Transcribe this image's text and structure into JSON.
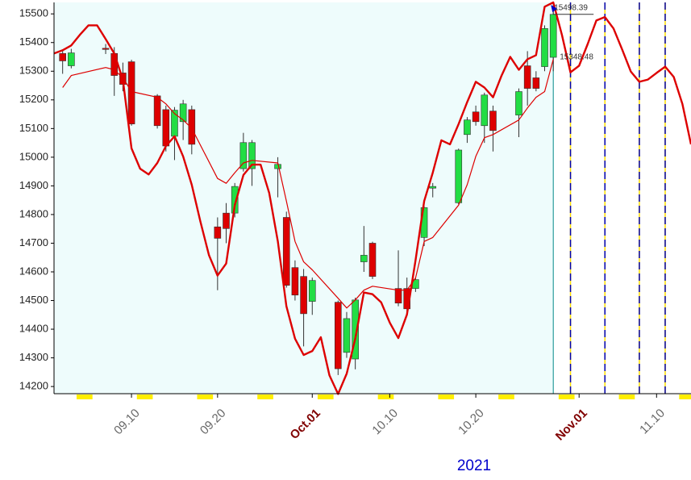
{
  "chart_data": {
    "type": "candlestick",
    "xlabel": "2021",
    "xlim": [
      "2021-09-01",
      "2021-11-14"
    ],
    "ylim": [
      14175,
      15540
    ],
    "yticks": [
      14200,
      14300,
      14400,
      14500,
      14600,
      14700,
      14800,
      14900,
      15000,
      15100,
      15200,
      15300,
      15400,
      15500
    ],
    "xticks": [
      {
        "value": "2021-09-10",
        "label": "09.10"
      },
      {
        "value": "2021-09-20",
        "label": "09.20"
      },
      {
        "value": "2021-10-01",
        "label": "Oct.01"
      },
      {
        "value": "2021-10-10",
        "label": "10.10"
      },
      {
        "value": "2021-10-20",
        "label": "10.20"
      },
      {
        "value": "2021-11-01",
        "label": "Nov.01"
      },
      {
        "value": "2021-11-10",
        "label": "11.10"
      }
    ],
    "xtick_colors": [
      "#666666",
      "#666666",
      "#800000",
      "#666666",
      "#666666",
      "#800000",
      "#666666"
    ],
    "up_color": "#22dd44",
    "down_color": "#dd0000",
    "candles": {
      "x": [
        "2021-09-02",
        "2021-09-03",
        "2021-09-07",
        "2021-09-08",
        "2021-09-09",
        "2021-09-10",
        "2021-09-13",
        "2021-09-14",
        "2021-09-15",
        "2021-09-16",
        "2021-09-17",
        "2021-09-20",
        "2021-09-21",
        "2021-09-22",
        "2021-09-23",
        "2021-09-24",
        "2021-09-27",
        "2021-09-28",
        "2021-09-29",
        "2021-09-30",
        "2021-10-01",
        "2021-10-04",
        "2021-10-05",
        "2021-10-06",
        "2021-10-07",
        "2021-10-08",
        "2021-10-11",
        "2021-10-12",
        "2021-10-13",
        "2021-10-14",
        "2021-10-15",
        "2021-10-18",
        "2021-10-19",
        "2021-10-20",
        "2021-10-21",
        "2021-10-22",
        "2021-10-25",
        "2021-10-26",
        "2021-10-27",
        "2021-10-28",
        "2021-10-29"
      ],
      "open": [
        15362,
        15319,
        15380,
        15362,
        15294,
        15333,
        15214,
        15166,
        15073,
        15124,
        15166,
        14757,
        14805,
        14805,
        14960,
        14960,
        14960,
        14790,
        14615,
        14584,
        14497,
        14494,
        14319,
        14296,
        14635,
        14700,
        14542,
        14542,
        14542,
        14720,
        14892,
        14841,
        15079,
        15158,
        15110,
        15161,
        15147,
        15319,
        15277,
        15316,
        15348.48
      ],
      "high": [
        15376,
        15378,
        15395,
        15384,
        15330,
        15340,
        15220,
        15180,
        15175,
        15200,
        15180,
        14790,
        14840,
        14910,
        15085,
        15060,
        15000,
        14810,
        14640,
        14610,
        14580,
        14500,
        14460,
        14510,
        14760,
        14705,
        14675,
        14580,
        14580,
        14830,
        14910,
        15030,
        15140,
        15180,
        15225,
        15180,
        15240,
        15370,
        15300,
        15460,
        15530
      ],
      "low": [
        15291,
        15310,
        15360,
        15214,
        15230,
        15110,
        15100,
        15020,
        14990,
        15060,
        15010,
        14536,
        14700,
        14790,
        14950,
        14900,
        14860,
        14545,
        14500,
        14340,
        14450,
        14240,
        14300,
        14260,
        14600,
        14575,
        14480,
        14460,
        14530,
        14690,
        14860,
        14835,
        15050,
        15110,
        15050,
        15020,
        15070,
        15180,
        15230,
        15300,
        15300
      ],
      "close": [
        15336,
        15364,
        15376,
        15285,
        15254,
        15116,
        15110,
        15039,
        15164,
        15186,
        15045,
        14717,
        14751,
        14898,
        15051,
        15051,
        14975,
        14553,
        14519,
        14454,
        14570,
        14262,
        14437,
        14502,
        14658,
        14584,
        14491,
        14471,
        14573,
        14824,
        14898,
        15025,
        15130,
        15124,
        15217,
        15093,
        15229,
        15240,
        15240,
        15449,
        15498.39
      ]
    },
    "lines": [
      {
        "color": "#dd0000",
        "width": 1.2,
        "x": [
          "2021-09-02",
          "2021-09-03",
          "2021-09-07",
          "2021-09-08",
          "2021-09-09",
          "2021-09-10",
          "2021-09-13",
          "2021-09-14",
          "2021-09-15",
          "2021-09-16",
          "2021-09-17",
          "2021-09-20",
          "2021-09-21",
          "2021-09-22",
          "2021-09-23",
          "2021-09-24",
          "2021-09-27",
          "2021-09-28",
          "2021-09-29",
          "2021-09-30",
          "2021-10-01",
          "2021-10-04",
          "2021-10-05",
          "2021-10-06",
          "2021-10-07",
          "2021-10-08",
          "2021-10-11",
          "2021-10-12",
          "2021-10-13",
          "2021-10-14",
          "2021-10-15",
          "2021-10-18",
          "2021-10-19",
          "2021-10-20",
          "2021-10-21",
          "2021-10-22",
          "2021-10-25",
          "2021-10-26",
          "2021-10-27",
          "2021-10-28",
          "2021-10-29"
        ],
        "values": [
          15243,
          15285,
          15313,
          15305,
          15277,
          15229,
          15209,
          15186,
          15152,
          15130,
          15101,
          14926,
          14909,
          14946,
          14980,
          14989,
          14980,
          14847,
          14706,
          14635,
          14607,
          14508,
          14474,
          14502,
          14536,
          14550,
          14536,
          14536,
          14579,
          14706,
          14720,
          14833,
          14904,
          15003,
          15068,
          15079,
          15130,
          15172,
          15209,
          15229,
          15342
        ]
      },
      {
        "color": "#dd0000",
        "width": 2.4,
        "x": [
          "2021-09-01",
          "2021-09-02",
          "2021-09-03",
          "2021-09-04",
          "2021-09-05",
          "2021-09-06",
          "2021-09-07",
          "2021-09-08",
          "2021-09-09",
          "2021-09-10",
          "2021-09-11",
          "2021-09-12",
          "2021-09-13",
          "2021-09-14",
          "2021-09-15",
          "2021-09-16",
          "2021-09-17",
          "2021-09-18",
          "2021-09-19",
          "2021-09-20",
          "2021-09-21",
          "2021-09-22",
          "2021-09-23",
          "2021-09-24",
          "2021-09-25",
          "2021-09-26",
          "2021-09-27",
          "2021-09-28",
          "2021-09-29",
          "2021-09-30",
          "2021-10-01",
          "2021-10-02",
          "2021-10-03",
          "2021-10-04",
          "2021-10-05",
          "2021-10-06",
          "2021-10-07",
          "2021-10-08",
          "2021-10-09",
          "2021-10-10",
          "2021-10-11",
          "2021-10-12",
          "2021-10-13",
          "2021-10-14",
          "2021-10-15",
          "2021-10-16",
          "2021-10-17",
          "2021-10-18",
          "2021-10-19",
          "2021-10-20",
          "2021-10-21",
          "2021-10-22",
          "2021-10-23",
          "2021-10-24",
          "2021-10-25",
          "2021-10-26",
          "2021-10-27",
          "2021-10-28",
          "2021-10-29",
          "2021-10-30",
          "2021-10-31",
          "2021-11-01",
          "2021-11-02",
          "2021-11-03",
          "2021-11-04",
          "2021-11-05",
          "2021-11-06",
          "2021-11-07",
          "2021-11-08",
          "2021-11-09",
          "2021-11-10",
          "2021-11-11",
          "2021-11-12",
          "2021-11-13",
          "2021-11-14"
        ],
        "values": [
          15362,
          15373,
          15390,
          15427,
          15460,
          15460,
          15412,
          15362,
          15271,
          15031,
          14960,
          14940,
          14980,
          15039,
          15073,
          15003,
          14904,
          14776,
          14658,
          14587,
          14629,
          14833,
          14938,
          14974,
          14974,
          14875,
          14706,
          14480,
          14367,
          14310,
          14324,
          14372,
          14239,
          14174,
          14245,
          14367,
          14528,
          14522,
          14494,
          14423,
          14369,
          14451,
          14641,
          14847,
          14946,
          15059,
          15045,
          15116,
          15192,
          15263,
          15243,
          15209,
          15285,
          15350,
          15305,
          15342,
          15356,
          15525,
          15540,
          15427,
          15296,
          15319,
          15395,
          15477,
          15489,
          15449,
          15376,
          15299,
          15263,
          15271,
          15294,
          15316,
          15280,
          15186,
          15045
        ]
      }
    ],
    "cycle_lines": [
      "2021-10-31",
      "2021-11-04",
      "2021-11-08",
      "2021-11-11"
    ],
    "annotations": [
      15498.39,
      15348.48
    ]
  }
}
